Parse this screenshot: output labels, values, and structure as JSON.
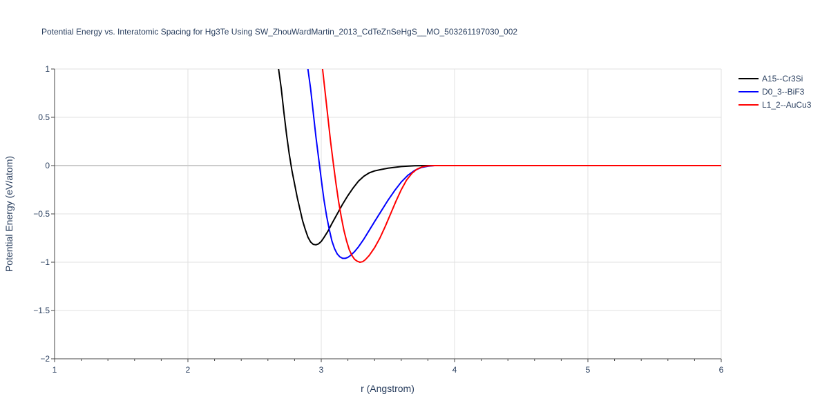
{
  "chart_data": {
    "type": "line",
    "title": "Potential Energy vs. Interatomic Spacing for Hg3Te Using SW_ZhouWardMartin_2013_CdTeZnSeHgS__MO_503261197030_002",
    "xlabel": "r (Angstrom)",
    "ylabel": "Potential Energy (eV/atom)",
    "xlim": [
      1,
      6
    ],
    "ylim": [
      -2,
      1
    ],
    "x_ticks": [
      1,
      2,
      3,
      4,
      5,
      6
    ],
    "x_tick_labels": [
      "1",
      "2",
      "3",
      "4",
      "5",
      "6"
    ],
    "y_ticks": [
      -2,
      -1.5,
      -1,
      -0.5,
      0,
      0.5,
      1
    ],
    "y_tick_labels": [
      "−2",
      "−1.5",
      "−1",
      "−0.5",
      "0",
      "0.5",
      "1"
    ],
    "grid": true,
    "legend_position": "top-right",
    "series": [
      {
        "name": "A15--Cr3Si",
        "color": "#000000",
        "points": [
          [
            2.68,
            1.0
          ],
          [
            2.7,
            0.8
          ],
          [
            2.72,
            0.55
          ],
          [
            2.74,
            0.32
          ],
          [
            2.76,
            0.12
          ],
          [
            2.78,
            -0.05
          ],
          [
            2.8,
            -0.19
          ],
          [
            2.82,
            -0.33
          ],
          [
            2.84,
            -0.45
          ],
          [
            2.86,
            -0.57
          ],
          [
            2.88,
            -0.66
          ],
          [
            2.9,
            -0.74
          ],
          [
            2.92,
            -0.79
          ],
          [
            2.94,
            -0.815
          ],
          [
            2.96,
            -0.82
          ],
          [
            2.98,
            -0.81
          ],
          [
            3.0,
            -0.785
          ],
          [
            3.02,
            -0.745
          ],
          [
            3.05,
            -0.68
          ],
          [
            3.08,
            -0.6
          ],
          [
            3.12,
            -0.5
          ],
          [
            3.16,
            -0.4
          ],
          [
            3.2,
            -0.31
          ],
          [
            3.24,
            -0.23
          ],
          [
            3.28,
            -0.16
          ],
          [
            3.32,
            -0.11
          ],
          [
            3.36,
            -0.075
          ],
          [
            3.4,
            -0.055
          ],
          [
            3.45,
            -0.04
          ],
          [
            3.5,
            -0.027
          ],
          [
            3.6,
            -0.01
          ],
          [
            3.7,
            -0.002
          ],
          [
            3.8,
            0.0
          ],
          [
            4.0,
            0.0
          ],
          [
            5.0,
            0.0
          ],
          [
            6.0,
            0.0
          ]
        ]
      },
      {
        "name": "D0_3--BiF3",
        "color": "#0000ff",
        "points": [
          [
            2.9,
            1.0
          ],
          [
            2.92,
            0.8
          ],
          [
            2.94,
            0.55
          ],
          [
            2.96,
            0.3
          ],
          [
            2.98,
            0.08
          ],
          [
            3.0,
            -0.14
          ],
          [
            3.02,
            -0.35
          ],
          [
            3.04,
            -0.52
          ],
          [
            3.06,
            -0.66
          ],
          [
            3.08,
            -0.78
          ],
          [
            3.1,
            -0.86
          ],
          [
            3.12,
            -0.915
          ],
          [
            3.14,
            -0.945
          ],
          [
            3.16,
            -0.96
          ],
          [
            3.18,
            -0.96
          ],
          [
            3.2,
            -0.95
          ],
          [
            3.22,
            -0.93
          ],
          [
            3.25,
            -0.89
          ],
          [
            3.28,
            -0.84
          ],
          [
            3.32,
            -0.76
          ],
          [
            3.36,
            -0.67
          ],
          [
            3.4,
            -0.58
          ],
          [
            3.45,
            -0.47
          ],
          [
            3.5,
            -0.36
          ],
          [
            3.55,
            -0.26
          ],
          [
            3.6,
            -0.17
          ],
          [
            3.65,
            -0.1
          ],
          [
            3.7,
            -0.05
          ],
          [
            3.75,
            -0.02
          ],
          [
            3.8,
            -0.006
          ],
          [
            3.85,
            0.0
          ],
          [
            4.0,
            0.0
          ],
          [
            5.0,
            0.0
          ],
          [
            6.0,
            0.0
          ]
        ]
      },
      {
        "name": "L1_2--AuCu3",
        "color": "#ff0000",
        "points": [
          [
            3.01,
            1.0
          ],
          [
            3.03,
            0.75
          ],
          [
            3.05,
            0.5
          ],
          [
            3.07,
            0.25
          ],
          [
            3.09,
            0.03
          ],
          [
            3.11,
            -0.18
          ],
          [
            3.13,
            -0.37
          ],
          [
            3.15,
            -0.53
          ],
          [
            3.17,
            -0.67
          ],
          [
            3.19,
            -0.78
          ],
          [
            3.21,
            -0.87
          ],
          [
            3.23,
            -0.93
          ],
          [
            3.25,
            -0.97
          ],
          [
            3.27,
            -0.99
          ],
          [
            3.29,
            -1.0
          ],
          [
            3.31,
            -0.995
          ],
          [
            3.33,
            -0.975
          ],
          [
            3.36,
            -0.93
          ],
          [
            3.4,
            -0.85
          ],
          [
            3.44,
            -0.75
          ],
          [
            3.48,
            -0.63
          ],
          [
            3.52,
            -0.5
          ],
          [
            3.56,
            -0.37
          ],
          [
            3.6,
            -0.25
          ],
          [
            3.64,
            -0.15
          ],
          [
            3.68,
            -0.08
          ],
          [
            3.72,
            -0.035
          ],
          [
            3.76,
            -0.012
          ],
          [
            3.8,
            -0.003
          ],
          [
            3.85,
            0.0
          ],
          [
            4.0,
            0.0
          ],
          [
            5.0,
            0.0
          ],
          [
            6.0,
            0.0
          ]
        ]
      }
    ]
  }
}
